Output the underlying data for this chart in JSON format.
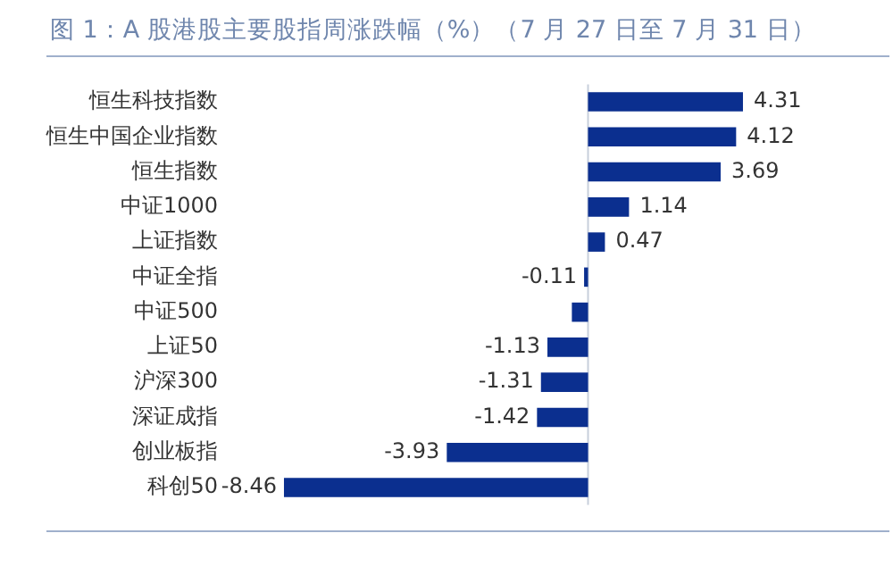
{
  "chart_data": {
    "type": "bar",
    "orientation": "horizontal",
    "title": "图 1：A 股港股主要股指周涨跌幅（%）（7 月 27 日至 7 月 31 日）",
    "categories": [
      "恒生科技指数",
      "恒生中国企业指数",
      "恒生指数",
      "中证1000",
      "上证指数",
      "中证全指",
      "中证500",
      "上证50",
      "沪深300",
      "深证成指",
      "创业板指",
      "科创50"
    ],
    "values": [
      4.31,
      4.12,
      3.69,
      1.14,
      0.47,
      -0.11,
      -0.45,
      -1.13,
      -1.31,
      -1.42,
      -3.93,
      -8.46
    ],
    "value_labels": [
      "4.31",
      "4.12",
      "3.69",
      "1.14",
      "0.47",
      "-0.11",
      null,
      "-1.13",
      "-1.31",
      "-1.42",
      "-3.93",
      "-8.46"
    ],
    "color": "#0b2f8f",
    "legend": false
  }
}
